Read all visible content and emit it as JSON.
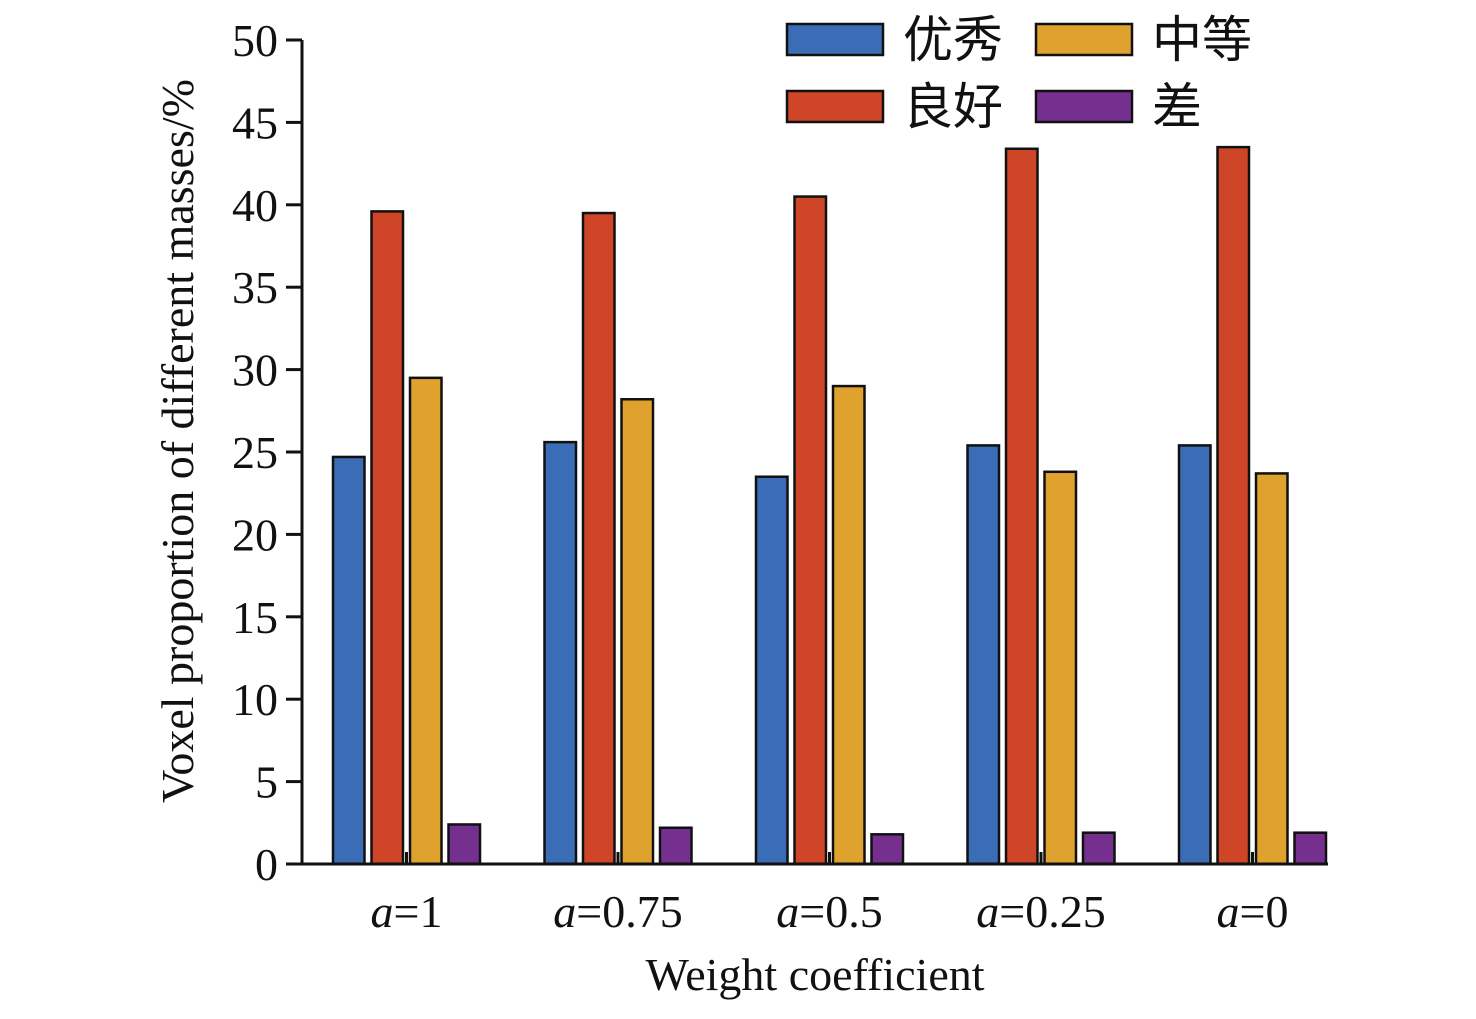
{
  "chart_data": {
    "type": "bar",
    "title": "",
    "xlabel": "Weight coefficient",
    "ylabel": "Voxel proportion of different masses/%",
    "ylim": [
      0,
      50
    ],
    "yticks": [
      0,
      5,
      10,
      15,
      20,
      25,
      30,
      35,
      40,
      45,
      50
    ],
    "categories": [
      {
        "italic": "a",
        "rest": "=1"
      },
      {
        "italic": "a",
        "rest": "=0.75"
      },
      {
        "italic": "a",
        "rest": "=0.5"
      },
      {
        "italic": "a",
        "rest": "=0.25"
      },
      {
        "italic": "a",
        "rest": "=0"
      }
    ],
    "series": [
      {
        "name": "优秀",
        "color": "#3a6db5",
        "values": [
          24.7,
          25.6,
          23.5,
          25.4,
          25.4
        ]
      },
      {
        "name": "良好",
        "color": "#cf4527",
        "values": [
          39.6,
          39.5,
          40.5,
          43.4,
          43.5
        ]
      },
      {
        "name": "中等",
        "color": "#e0a22e",
        "values": [
          29.5,
          28.2,
          29.0,
          23.8,
          23.7
        ]
      },
      {
        "name": "差",
        "color": "#75308f",
        "values": [
          2.4,
          2.2,
          1.8,
          1.9,
          1.9
        ]
      }
    ],
    "legend": {
      "position": "top-right",
      "columns": 2,
      "order": [
        0,
        2,
        1,
        3
      ]
    },
    "grid": false
  }
}
